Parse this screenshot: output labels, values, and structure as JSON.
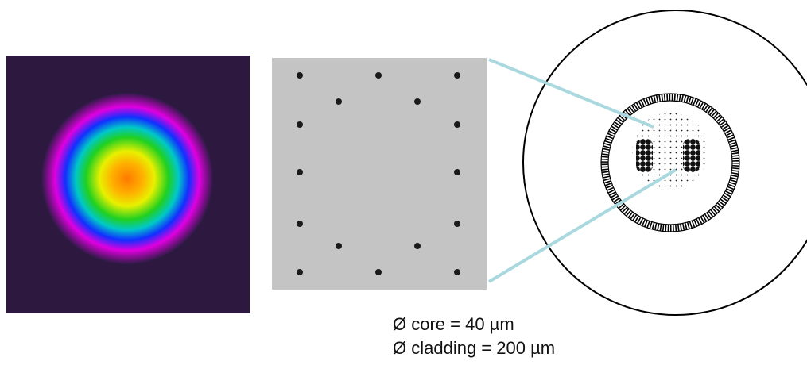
{
  "captions": [
    "Ø core = 40 µm",
    "Ø cladding = 200 µm"
  ]
}
